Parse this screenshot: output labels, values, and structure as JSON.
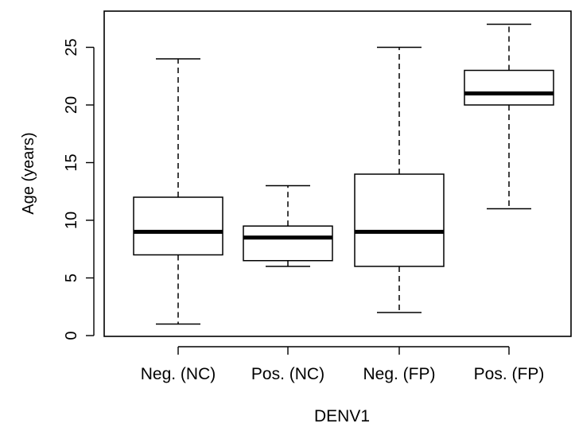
{
  "chart_data": {
    "type": "boxplot",
    "xlabel": "DENV1",
    "ylabel": "Age (years)",
    "ylim": [
      -0.5,
      28
    ],
    "yticks": [
      0,
      5,
      10,
      15,
      20,
      25
    ],
    "categories": [
      "Neg. (NC)",
      "Pos. (NC)",
      "Neg. (FP)",
      "Pos. (FP)"
    ],
    "boxes": [
      {
        "label": "Neg. (NC)",
        "min": 1,
        "q1": 7,
        "median": 9,
        "q3": 12,
        "max": 24
      },
      {
        "label": "Pos. (NC)",
        "min": 6,
        "q1": 6.5,
        "median": 8.5,
        "q3": 9.5,
        "max": 13
      },
      {
        "label": "Neg. (FP)",
        "min": 2,
        "q1": 6,
        "median": 9,
        "q3": 14,
        "max": 25
      },
      {
        "label": "Pos. (FP)",
        "min": 11,
        "q1": 20,
        "median": 21,
        "q3": 23,
        "max": 27
      }
    ],
    "grid": false
  }
}
